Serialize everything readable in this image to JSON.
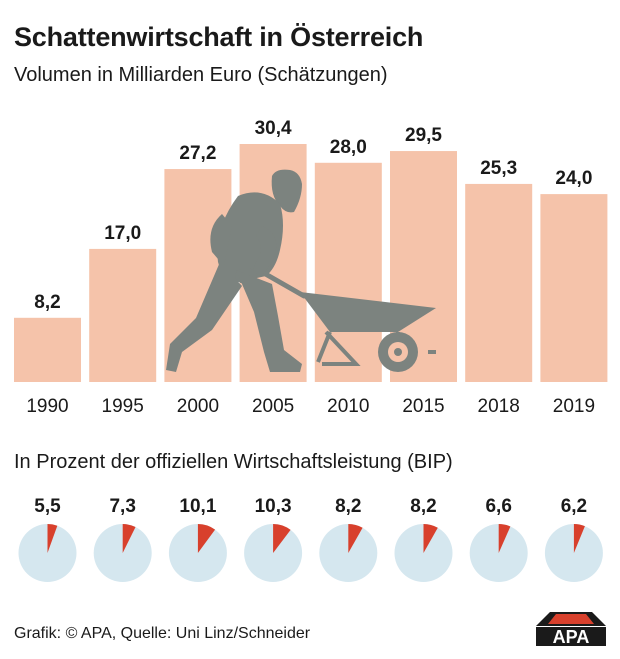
{
  "title": "Schattenwirtschaft in Österreich",
  "subtitle": "Volumen in Milliarden Euro (Schätzungen)",
  "subtitle_pct": "In Prozent der offiziellen Wirtschaftsleistung (BIP)",
  "footer": "Grafik: © APA, Quelle: Uni Linz/Schneider",
  "logo_text": "APA",
  "colors": {
    "bar": "#f5c3aa",
    "pie_bg": "#d5e7ef",
    "pie_slice": "#d8402c",
    "figure": "#7c837f",
    "logo_bg": "#1a1a1a",
    "logo_accent": "#d8402c"
  },
  "chart_data": [
    {
      "type": "bar",
      "title": "Volumen in Milliarden Euro (Schätzungen)",
      "categories": [
        "1990",
        "1995",
        "2000",
        "2005",
        "2010",
        "2015",
        "2018",
        "2019"
      ],
      "values": [
        8.2,
        17.0,
        27.2,
        30.4,
        28.0,
        29.5,
        25.3,
        24.0
      ],
      "value_labels": [
        "8,2",
        "17,0",
        "27,2",
        "30,4",
        "28,0",
        "29,5",
        "25,3",
        "24,0"
      ],
      "ylim": [
        0,
        30.4
      ],
      "grid": false,
      "legend": "none",
      "illustration": "person-pushing-wheelbarrow"
    },
    {
      "type": "pie",
      "title": "In Prozent der offiziellen Wirtschaftsleistung (BIP)",
      "categories": [
        "1990",
        "1995",
        "2000",
        "2005",
        "2010",
        "2015",
        "2018",
        "2019"
      ],
      "values": [
        5.5,
        7.3,
        10.1,
        10.3,
        8.2,
        8.2,
        6.6,
        6.2
      ],
      "value_labels": [
        "5,5",
        "7,3",
        "10,1",
        "10,3",
        "8,2",
        "8,2",
        "6,6",
        "6,2"
      ],
      "unit": "%"
    }
  ]
}
